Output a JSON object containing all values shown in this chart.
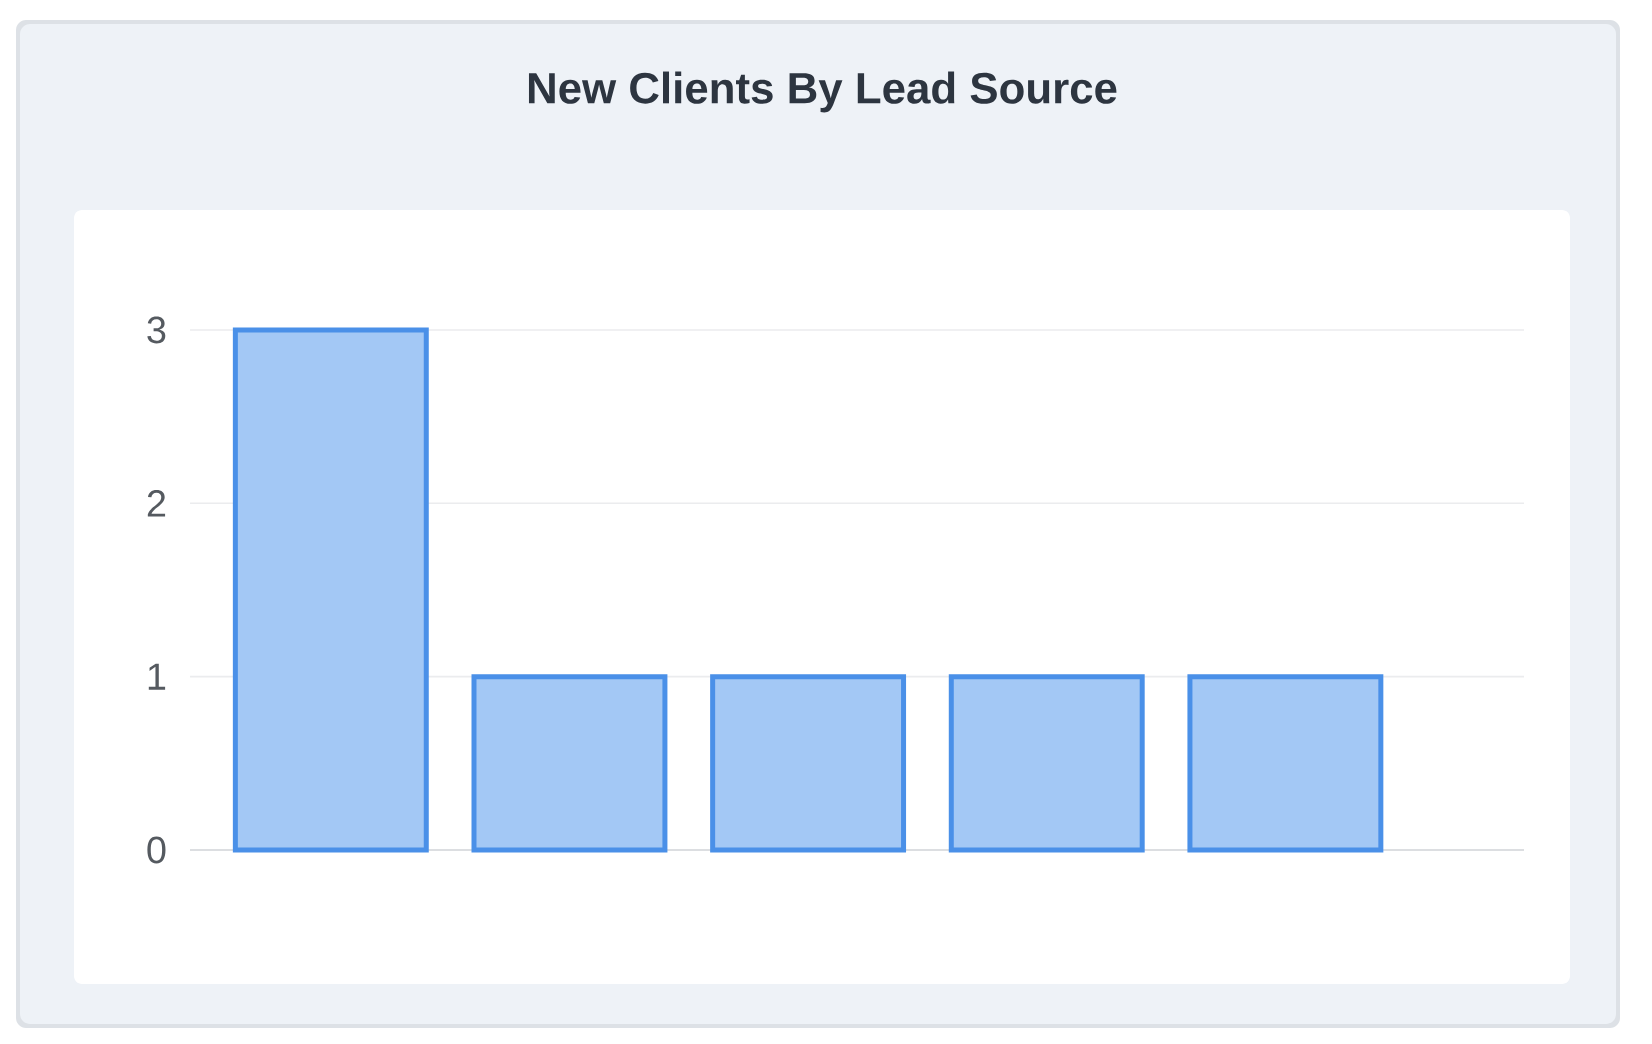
{
  "chart_data": {
    "type": "bar",
    "title": "New Clients By Lead Source",
    "categories": [
      null,
      null,
      null,
      null,
      null
    ],
    "values": [
      3,
      1,
      1,
      1,
      1
    ],
    "color": "#a3c8f5",
    "ylim": [
      0,
      3
    ],
    "yticks": [
      0,
      1,
      2,
      3
    ],
    "grid": "y"
  }
}
